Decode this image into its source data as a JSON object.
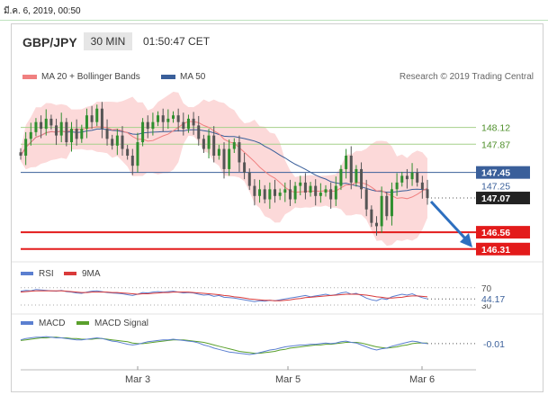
{
  "timestamp": "มี.ค. 6, 2019, 00:50",
  "header": {
    "pair": "GBP/JPY",
    "timeframe": "30 MIN",
    "time": "01:50:47 CET"
  },
  "legend": {
    "ma20": "MA 20 + Bollinger Bands",
    "ma50": "MA 50",
    "credit": "Research © 2019 Trading Central"
  },
  "colors": {
    "ma20": "#f08080",
    "ma50": "#3a5f9a",
    "band": "#fcd9d9",
    "green": "#a6d08a",
    "red": "#e31b1b",
    "up": "#2f8f2f",
    "down": "#555555",
    "rsi": "#5b7fd0",
    "ma9": "#d93a3a",
    "macd": "#5b7fd0",
    "signal": "#5aa02c",
    "arrow": "#2d6fbf"
  },
  "chart_data": [
    {
      "type": "line",
      "name": "price",
      "x_labels": [
        "Mar 3",
        "Mar 5",
        "Mar 6"
      ],
      "ylim": [
        146.2,
        148.45
      ],
      "levels": [
        {
          "label": "148.12",
          "value": 148.12,
          "kind": "resistance-green"
        },
        {
          "label": "147.87",
          "value": 147.87,
          "kind": "resistance-green"
        },
        {
          "label": "147.45",
          "value": 147.45,
          "kind": "pivot-blue"
        },
        {
          "label": "146.56",
          "value": 146.56,
          "kind": "support-red"
        },
        {
          "label": "146.31",
          "value": 146.31,
          "kind": "support-red"
        }
      ],
      "tags": [
        {
          "label": "147.25",
          "value": 147.25,
          "kind": "ma50"
        },
        {
          "label": "147.07",
          "value": 147.07,
          "kind": "last-price"
        }
      ],
      "close": [
        147.7,
        147.95,
        148.05,
        148.2,
        148.1,
        148.25,
        148.15,
        148.0,
        148.2,
        147.9,
        148.1,
        147.95,
        148.1,
        148.3,
        148.2,
        148.4,
        148.1,
        147.95,
        147.85,
        148.0,
        147.8,
        147.7,
        147.55,
        147.9,
        148.2,
        148.1,
        148.2,
        148.3,
        148.2,
        148.25,
        148.3,
        148.2,
        148.1,
        148.25,
        148.15,
        147.95,
        147.8,
        148.0,
        147.7,
        147.8,
        147.5,
        147.8,
        147.9,
        147.6,
        147.45,
        147.25,
        147.1,
        147.2,
        147.05,
        147.2,
        147.1,
        147.15,
        147.2,
        147.05,
        147.25,
        147.3,
        147.15,
        147.25,
        147.1,
        147.15,
        147.2,
        147.05,
        147.25,
        147.5,
        147.7,
        147.3,
        147.5,
        147.2,
        146.9,
        146.7,
        146.65,
        147.1,
        146.8,
        147.2,
        147.3,
        147.4,
        147.35,
        147.45,
        147.3,
        147.2,
        147.07
      ],
      "arrow": {
        "from": 147.07,
        "to": 146.36
      }
    },
    {
      "type": "line",
      "name": "rsi",
      "legend": [
        "RSI",
        "9MA"
      ],
      "ylim": [
        30,
        80
      ],
      "levels": [
        70,
        30
      ],
      "level_labels": [
        "70",
        "30"
      ],
      "tag": "44.17",
      "rsi": [
        62,
        64,
        63,
        66,
        65,
        64,
        63,
        62,
        64,
        61,
        60,
        58,
        57,
        60,
        62,
        63,
        61,
        59,
        58,
        57,
        56,
        54,
        52,
        55,
        59,
        58,
        60,
        61,
        60,
        61,
        62,
        60,
        58,
        59,
        58,
        55,
        53,
        54,
        50,
        52,
        48,
        47,
        46,
        44,
        42,
        40,
        38,
        40,
        39,
        41,
        40,
        42,
        44,
        46,
        48,
        50,
        52,
        49,
        51,
        53,
        55,
        52,
        54,
        58,
        60,
        55,
        57,
        52,
        46,
        42,
        40,
        45,
        43,
        49,
        52,
        55,
        53,
        56,
        51,
        47,
        44.17
      ],
      "ma9": [
        60,
        61,
        62,
        63,
        63,
        63,
        63,
        63,
        63,
        62,
        61,
        60,
        59,
        59,
        60,
        60,
        60,
        60,
        59,
        59,
        58,
        57,
        56,
        55,
        56,
        56,
        57,
        58,
        59,
        59,
        60,
        60,
        60,
        60,
        59,
        58,
        57,
        56,
        55,
        54,
        52,
        51,
        49,
        48,
        46,
        44,
        43,
        42,
        41,
        41,
        40,
        40,
        41,
        42,
        44,
        45,
        47,
        48,
        49,
        50,
        51,
        52,
        53,
        54,
        55,
        55,
        55,
        54,
        53,
        51,
        49,
        48,
        46,
        46,
        47,
        48,
        50,
        51,
        51,
        50,
        49
      ]
    },
    {
      "type": "line",
      "name": "macd",
      "legend": [
        "MACD",
        "MACD Signal"
      ],
      "ylim": [
        -0.25,
        0.2
      ],
      "tag": "-0.01",
      "macd": [
        0.05,
        0.07,
        0.08,
        0.09,
        0.09,
        0.1,
        0.09,
        0.08,
        0.08,
        0.07,
        0.06,
        0.05,
        0.05,
        0.06,
        0.07,
        0.08,
        0.07,
        0.05,
        0.03,
        0.02,
        0.0,
        -0.02,
        -0.03,
        -0.02,
        0.0,
        0.02,
        0.03,
        0.04,
        0.05,
        0.05,
        0.06,
        0.05,
        0.04,
        0.03,
        0.02,
        0.0,
        -0.03,
        -0.05,
        -0.08,
        -0.1,
        -0.12,
        -0.14,
        -0.15,
        -0.16,
        -0.17,
        -0.18,
        -0.17,
        -0.15,
        -0.13,
        -0.11,
        -0.1,
        -0.08,
        -0.06,
        -0.05,
        -0.04,
        -0.03,
        -0.03,
        -0.02,
        -0.02,
        -0.01,
        0.0,
        -0.01,
        0.0,
        0.02,
        0.03,
        0.01,
        0.0,
        -0.03,
        -0.06,
        -0.09,
        -0.11,
        -0.09,
        -0.08,
        -0.05,
        -0.03,
        -0.01,
        0.01,
        0.03,
        0.02,
        0.0,
        -0.01
      ],
      "signal": [
        0.04,
        0.05,
        0.06,
        0.07,
        0.08,
        0.08,
        0.09,
        0.09,
        0.08,
        0.08,
        0.07,
        0.07,
        0.06,
        0.06,
        0.06,
        0.07,
        0.07,
        0.06,
        0.05,
        0.04,
        0.03,
        0.02,
        0.0,
        -0.01,
        -0.01,
        0.0,
        0.01,
        0.02,
        0.03,
        0.04,
        0.05,
        0.05,
        0.05,
        0.04,
        0.03,
        0.02,
        0.01,
        -0.01,
        -0.03,
        -0.05,
        -0.07,
        -0.09,
        -0.11,
        -0.13,
        -0.14,
        -0.15,
        -0.16,
        -0.16,
        -0.15,
        -0.14,
        -0.13,
        -0.11,
        -0.1,
        -0.08,
        -0.07,
        -0.06,
        -0.05,
        -0.04,
        -0.03,
        -0.03,
        -0.02,
        -0.02,
        -0.01,
        0.0,
        0.01,
        0.01,
        0.01,
        0.0,
        -0.02,
        -0.04,
        -0.06,
        -0.07,
        -0.08,
        -0.07,
        -0.06,
        -0.04,
        -0.03,
        -0.01,
        0.0,
        0.0,
        0.0
      ]
    }
  ]
}
